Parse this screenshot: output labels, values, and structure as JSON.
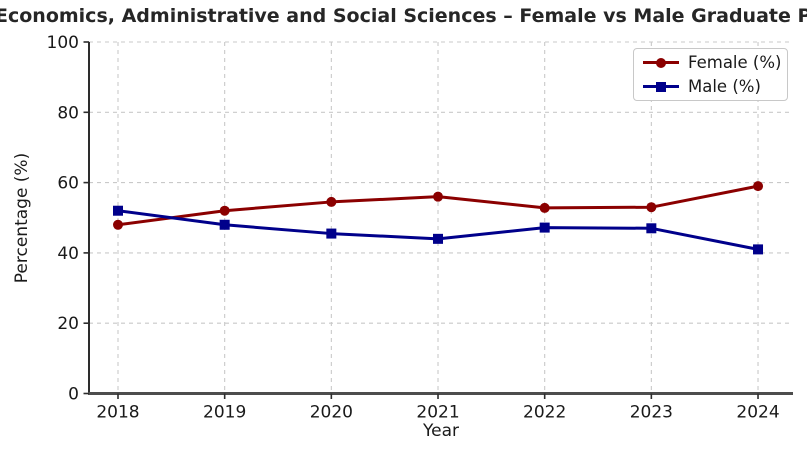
{
  "chart_data": {
    "type": "line",
    "title": "Economics, Administrative and Social Sciences – Female vs Male Graduate Percentages",
    "xlabel": "Year",
    "ylabel": "Percentage (%)",
    "x": [
      2018,
      2019,
      2020,
      2021,
      2022,
      2023,
      2024
    ],
    "series": [
      {
        "name": "Female (%)",
        "color": "#8B0000",
        "marker": "circle",
        "values": [
          48,
          52,
          54.5,
          56,
          52.8,
          53,
          59
        ]
      },
      {
        "name": "Male (%)",
        "color": "#00008B",
        "marker": "square",
        "values": [
          52,
          48,
          45.5,
          44,
          47.2,
          47,
          41
        ]
      }
    ],
    "ylim": [
      0,
      100
    ],
    "yticks": [
      0,
      20,
      40,
      60,
      80,
      100
    ],
    "grid": true,
    "grid_style": "dashed",
    "grid_color": "#c9c9c9",
    "legend_position": "upper right",
    "background": "#ffffff"
  }
}
